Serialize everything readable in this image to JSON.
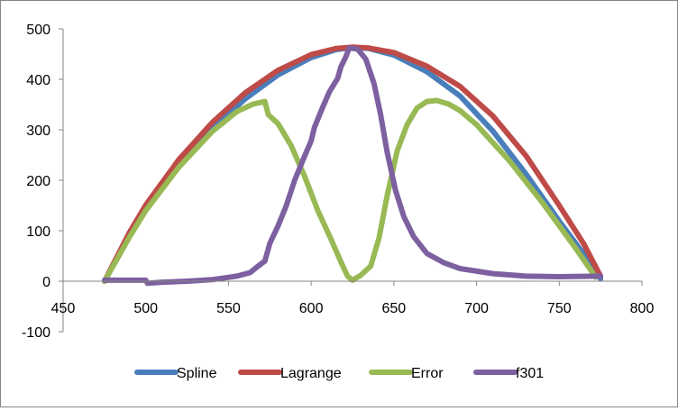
{
  "chart_data": {
    "type": "line",
    "title": "",
    "xlabel": "",
    "ylabel": "",
    "xlim": [
      450,
      800
    ],
    "ylim": [
      -100,
      500
    ],
    "x_ticks": [
      450,
      500,
      550,
      600,
      650,
      700,
      750,
      800
    ],
    "y_ticks": [
      -100,
      0,
      100,
      200,
      300,
      400,
      500
    ],
    "x_tick_labels": [
      "450",
      "500",
      "550",
      "600",
      "650",
      "700",
      "750",
      "800"
    ],
    "y_tick_labels": [
      "-100",
      "0",
      "100",
      "200",
      "300",
      "400",
      "500"
    ],
    "grid": false,
    "legend_position": "bottom",
    "series": [
      {
        "name": "Spline",
        "color": "#4a7ebb",
        "points": [
          [
            475,
            0
          ],
          [
            490,
            88
          ],
          [
            500,
            141
          ],
          [
            520,
            228
          ],
          [
            540,
            301
          ],
          [
            560,
            361
          ],
          [
            580,
            409
          ],
          [
            600,
            443
          ],
          [
            615,
            459
          ],
          [
            625,
            463
          ],
          [
            635,
            461
          ],
          [
            650,
            448
          ],
          [
            670,
            415
          ],
          [
            690,
            367
          ],
          [
            710,
            297
          ],
          [
            730,
            212
          ],
          [
            750,
            119
          ],
          [
            765,
            53
          ],
          [
            775,
            5
          ]
        ]
      },
      {
        "name": "Lagrange",
        "color": "#be4b48",
        "points": [
          [
            475,
            0
          ],
          [
            490,
            96
          ],
          [
            500,
            151
          ],
          [
            520,
            241
          ],
          [
            540,
            314
          ],
          [
            560,
            373
          ],
          [
            580,
            418
          ],
          [
            600,
            449
          ],
          [
            615,
            461
          ],
          [
            625,
            464
          ],
          [
            635,
            462
          ],
          [
            650,
            453
          ],
          [
            670,
            426
          ],
          [
            690,
            386
          ],
          [
            710,
            327
          ],
          [
            730,
            248
          ],
          [
            750,
            150
          ],
          [
            765,
            73
          ],
          [
            775,
            10
          ]
        ]
      },
      {
        "name": "Error",
        "color": "#98b954",
        "points": [
          [
            475,
            0
          ],
          [
            490,
            87
          ],
          [
            500,
            140
          ],
          [
            520,
            226
          ],
          [
            540,
            296
          ],
          [
            555,
            336
          ],
          [
            565,
            351
          ],
          [
            572,
            356
          ],
          [
            574,
            330
          ],
          [
            580,
            312
          ],
          [
            588,
            268
          ],
          [
            596,
            208
          ],
          [
            604,
            140
          ],
          [
            612,
            83
          ],
          [
            618,
            38
          ],
          [
            622,
            10
          ],
          [
            625,
            2
          ],
          [
            630,
            12
          ],
          [
            636,
            30
          ],
          [
            641,
            85
          ],
          [
            646,
            170
          ],
          [
            652,
            258
          ],
          [
            658,
            310
          ],
          [
            664,
            343
          ],
          [
            670,
            356
          ],
          [
            676,
            358
          ],
          [
            683,
            351
          ],
          [
            690,
            338
          ],
          [
            700,
            310
          ],
          [
            720,
            238
          ],
          [
            740,
            155
          ],
          [
            760,
            65
          ],
          [
            772,
            8
          ]
        ]
      },
      {
        "name": "f301",
        "color": "#7d60a0",
        "points": [
          [
            475,
            2
          ],
          [
            500,
            2
          ],
          [
            501,
            -4
          ],
          [
            510,
            -2
          ],
          [
            525,
            0
          ],
          [
            540,
            3
          ],
          [
            555,
            10
          ],
          [
            563,
            17
          ],
          [
            568,
            30
          ],
          [
            572,
            40
          ],
          [
            575,
            75
          ],
          [
            580,
            110
          ],
          [
            585,
            150
          ],
          [
            590,
            200
          ],
          [
            595,
            240
          ],
          [
            600,
            278
          ],
          [
            602,
            305
          ],
          [
            607,
            345
          ],
          [
            611,
            375
          ],
          [
            616,
            402
          ],
          [
            618,
            425
          ],
          [
            621,
            445
          ],
          [
            623,
            462
          ],
          [
            628,
            460
          ],
          [
            633,
            440
          ],
          [
            638,
            392
          ],
          [
            642,
            330
          ],
          [
            646,
            255
          ],
          [
            651,
            180
          ],
          [
            656,
            128
          ],
          [
            662,
            88
          ],
          [
            670,
            55
          ],
          [
            680,
            37
          ],
          [
            690,
            25
          ],
          [
            710,
            15
          ],
          [
            730,
            10
          ],
          [
            750,
            9
          ],
          [
            775,
            10
          ]
        ]
      }
    ]
  }
}
